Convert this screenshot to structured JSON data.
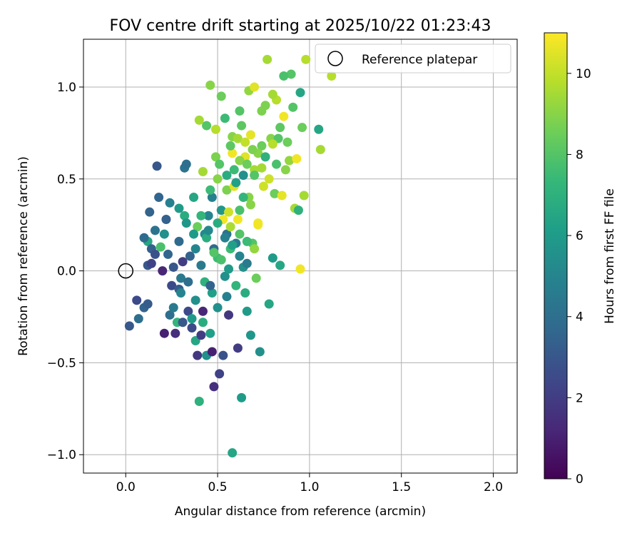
{
  "chart_data": {
    "type": "scatter",
    "title": "FOV centre drift starting at 2025/10/22 01:23:43",
    "xlabel": "Angular distance from reference (arcmin)",
    "ylabel": "Rotation from reference (arcmin)",
    "xlim": [
      -0.23,
      2.13
    ],
    "ylim": [
      -1.1,
      1.26
    ],
    "xticks": [
      0.0,
      0.5,
      1.0,
      1.5,
      2.0
    ],
    "xtick_labels": [
      "0.0",
      "0.5",
      "1.0",
      "1.5",
      "2.0"
    ],
    "yticks": [
      -1.0,
      -0.5,
      0.0,
      0.5,
      1.0
    ],
    "ytick_labels": [
      "−1.0",
      "−0.5",
      "0.0",
      "0.5",
      "1.0"
    ],
    "grid": true,
    "legend": {
      "position": "top-right",
      "label": "Reference platepar"
    },
    "reference_point": {
      "x": 0.0,
      "y": 0.0
    },
    "colorbar": {
      "label": "Hours from first FF file",
      "min": 0,
      "max": 11,
      "ticks": [
        0,
        2,
        4,
        6,
        8,
        10
      ],
      "tick_labels": [
        "0",
        "2",
        "4",
        "6",
        "8",
        "10"
      ],
      "colormap": [
        "#440154",
        "#482878",
        "#3e4989",
        "#31688e",
        "#26828e",
        "#1f9e89",
        "#35b779",
        "#6ece58",
        "#b5de2b",
        "#fde725"
      ]
    },
    "series_fields": [
      "x",
      "y",
      "hours"
    ],
    "points": [
      [
        0.02,
        -0.3,
        3.0
      ],
      [
        0.06,
        -0.16,
        2.5
      ],
      [
        0.07,
        -0.26,
        4.0
      ],
      [
        0.1,
        -0.2,
        3.5
      ],
      [
        0.12,
        -0.18,
        3.2
      ],
      [
        0.12,
        0.03,
        3.0
      ],
      [
        0.14,
        0.04,
        2.2
      ],
      [
        0.12,
        0.16,
        6.5
      ],
      [
        0.1,
        0.18,
        3.8
      ],
      [
        0.14,
        0.12,
        3.4
      ],
      [
        0.16,
        0.09,
        2.8
      ],
      [
        0.13,
        0.32,
        3.5
      ],
      [
        0.16,
        0.22,
        4.2
      ],
      [
        0.18,
        0.4,
        3.6
      ],
      [
        0.17,
        0.57,
        3.0
      ],
      [
        0.19,
        0.13,
        7.8
      ],
      [
        0.2,
        0.0,
        1.2
      ],
      [
        0.21,
        -0.34,
        1.0
      ],
      [
        0.21,
        0.2,
        5.5
      ],
      [
        0.22,
        0.28,
        3.4
      ],
      [
        0.23,
        0.09,
        3.6
      ],
      [
        0.24,
        0.37,
        4.8
      ],
      [
        0.24,
        -0.24,
        4.0
      ],
      [
        0.25,
        -0.08,
        2.5
      ],
      [
        0.26,
        0.02,
        3.0
      ],
      [
        0.27,
        -0.34,
        1.5
      ],
      [
        0.28,
        -0.28,
        7.2
      ],
      [
        0.29,
        -0.1,
        3.2
      ],
      [
        0.29,
        0.16,
        3.8
      ],
      [
        0.3,
        -0.04,
        4.5
      ],
      [
        0.31,
        0.05,
        2.0
      ],
      [
        0.32,
        0.3,
        6.8
      ],
      [
        0.32,
        0.56,
        4.2
      ],
      [
        0.33,
        0.58,
        4.0
      ],
      [
        0.34,
        -0.22,
        2.5
      ],
      [
        0.35,
        0.08,
        3.5
      ],
      [
        0.36,
        -0.26,
        6.0
      ],
      [
        0.37,
        0.4,
        6.5
      ],
      [
        0.38,
        -0.38,
        6.5
      ],
      [
        0.38,
        0.12,
        5.0
      ],
      [
        0.39,
        -0.46,
        1.8
      ],
      [
        0.4,
        -0.71,
        7.0
      ],
      [
        0.41,
        0.03,
        4.5
      ],
      [
        0.42,
        -0.28,
        6.8
      ],
      [
        0.43,
        0.2,
        5.2
      ],
      [
        0.44,
        -0.46,
        5.5
      ],
      [
        0.45,
        0.3,
        5.0
      ],
      [
        0.46,
        -0.34,
        6.2
      ],
      [
        0.47,
        0.4,
        4.8
      ],
      [
        0.48,
        -0.63,
        1.5
      ],
      [
        0.48,
        0.12,
        3.8
      ],
      [
        0.49,
        0.62,
        8.8
      ],
      [
        0.5,
        0.07,
        7.5
      ],
      [
        0.51,
        -0.56,
        2.2
      ],
      [
        0.52,
        0.33,
        5.8
      ],
      [
        0.53,
        -0.46,
        2.8
      ],
      [
        0.54,
        -0.03,
        5.5
      ],
      [
        0.55,
        0.2,
        4.2
      ],
      [
        0.56,
        -0.24,
        1.8
      ],
      [
        0.57,
        0.12,
        7.5
      ],
      [
        0.58,
        -0.99,
        6.5
      ],
      [
        0.59,
        0.55,
        7.5
      ],
      [
        0.6,
        0.15,
        4.5
      ],
      [
        0.61,
        -0.42,
        2.0
      ],
      [
        0.62,
        0.33,
        7.8
      ],
      [
        0.63,
        -0.69,
        6.0
      ],
      [
        0.64,
        0.02,
        5.5
      ],
      [
        0.65,
        0.62,
        10.5
      ],
      [
        0.66,
        -0.22,
        6.0
      ],
      [
        0.67,
        0.4,
        9.0
      ],
      [
        0.68,
        -0.35,
        5.8
      ],
      [
        0.69,
        0.15,
        8.0
      ],
      [
        0.7,
        0.55,
        9.5
      ],
      [
        0.71,
        -0.04,
        8.5
      ],
      [
        0.72,
        0.25,
        10.8
      ],
      [
        0.73,
        -0.44,
        5.5
      ],
      [
        0.74,
        0.68,
        8.5
      ],
      [
        0.75,
        0.46,
        10.2
      ],
      [
        0.76,
        0.9,
        8.8
      ],
      [
        0.77,
        1.15,
        9.5
      ],
      [
        0.78,
        -0.18,
        6.5
      ],
      [
        0.79,
        0.72,
        9.0
      ],
      [
        0.8,
        0.07,
        6.0
      ],
      [
        0.81,
        0.42,
        8.5
      ],
      [
        0.82,
        0.93,
        9.8
      ],
      [
        0.83,
        0.72,
        8.0
      ],
      [
        0.84,
        0.03,
        6.5
      ],
      [
        0.85,
        0.41,
        10.6
      ],
      [
        0.86,
        0.84,
        10.8
      ],
      [
        0.87,
        0.55,
        9.0
      ],
      [
        0.88,
        0.7,
        8.5
      ],
      [
        0.89,
        0.6,
        9.2
      ],
      [
        0.9,
        1.07,
        8.0
      ],
      [
        0.92,
        0.34,
        9.5
      ],
      [
        0.93,
        0.61,
        10.8
      ],
      [
        0.94,
        0.33,
        7.0
      ],
      [
        0.95,
        0.01,
        10.8
      ],
      [
        0.96,
        0.78,
        8.5
      ],
      [
        0.97,
        0.41,
        9.5
      ],
      [
        0.98,
        1.15,
        9.8
      ],
      [
        1.05,
        0.77,
        6.5
      ],
      [
        1.06,
        0.66,
        9.5
      ],
      [
        1.12,
        1.06,
        9.8
      ],
      [
        0.46,
        1.01,
        9.0
      ],
      [
        0.52,
        0.95,
        8.5
      ],
      [
        0.62,
        0.87,
        8.0
      ],
      [
        0.67,
        0.98,
        9.2
      ],
      [
        0.7,
        1.0,
        10.5
      ],
      [
        0.74,
        0.87,
        8.8
      ],
      [
        0.8,
        0.96,
        9.5
      ],
      [
        0.86,
        1.06,
        7.8
      ],
      [
        0.91,
        0.89,
        8.0
      ],
      [
        0.95,
        0.97,
        6.5
      ],
      [
        0.4,
        0.82,
        9.5
      ],
      [
        0.44,
        0.79,
        8.0
      ],
      [
        0.49,
        0.77,
        9.8
      ],
      [
        0.54,
        0.83,
        7.5
      ],
      [
        0.58,
        0.73,
        9.0
      ],
      [
        0.63,
        0.79,
        8.2
      ],
      [
        0.68,
        0.74,
        10.6
      ],
      [
        0.72,
        0.64,
        9.0
      ],
      [
        0.76,
        0.62,
        7.0
      ],
      [
        0.8,
        0.69,
        9.8
      ],
      [
        0.84,
        0.78,
        8.2
      ],
      [
        0.42,
        0.54,
        9.5
      ],
      [
        0.46,
        0.44,
        7.5
      ],
      [
        0.5,
        0.5,
        9.0
      ],
      [
        0.55,
        0.44,
        8.8
      ],
      [
        0.59,
        0.46,
        10.5
      ],
      [
        0.64,
        0.4,
        7.2
      ],
      [
        0.68,
        0.36,
        9.0
      ],
      [
        0.72,
        0.26,
        10.8
      ],
      [
        0.53,
        0.28,
        10.8
      ],
      [
        0.57,
        0.24,
        9.6
      ],
      [
        0.62,
        0.2,
        8.0
      ],
      [
        0.66,
        0.16,
        7.5
      ],
      [
        0.7,
        0.12,
        9.2
      ],
      [
        0.56,
        0.32,
        10.2
      ],
      [
        0.61,
        0.28,
        10.8
      ],
      [
        0.39,
        0.24,
        8.5
      ],
      [
        0.44,
        0.18,
        6.8
      ],
      [
        0.48,
        0.1,
        8.0
      ],
      [
        0.52,
        0.06,
        7.8
      ],
      [
        0.56,
        0.01,
        6.0
      ],
      [
        0.43,
        -0.06,
        7.0
      ],
      [
        0.47,
        -0.12,
        6.2
      ],
      [
        0.5,
        -0.2,
        5.5
      ],
      [
        0.55,
        -0.14,
        4.8
      ],
      [
        0.6,
        -0.08,
        7.2
      ],
      [
        0.65,
        -0.12,
        6.8
      ],
      [
        0.3,
        -0.12,
        5.0
      ],
      [
        0.34,
        -0.06,
        4.0
      ],
      [
        0.38,
        -0.16,
        5.5
      ],
      [
        0.42,
        -0.22,
        1.2
      ],
      [
        0.46,
        -0.08,
        3.5
      ],
      [
        0.26,
        -0.2,
        4.5
      ],
      [
        0.31,
        -0.28,
        3.0
      ],
      [
        0.36,
        -0.31,
        2.5
      ],
      [
        0.41,
        -0.35,
        2.0
      ],
      [
        0.47,
        -0.44,
        1.0
      ],
      [
        0.29,
        0.34,
        6.0
      ],
      [
        0.33,
        0.26,
        5.8
      ],
      [
        0.37,
        0.2,
        6.0
      ],
      [
        0.41,
        0.3,
        7.2
      ],
      [
        0.45,
        0.22,
        5.2
      ],
      [
        0.5,
        0.26,
        6.8
      ],
      [
        0.54,
        0.18,
        4.8
      ],
      [
        0.58,
        0.14,
        6.2
      ],
      [
        0.62,
        0.08,
        5.0
      ],
      [
        0.66,
        0.04,
        4.5
      ],
      [
        0.58,
        0.64,
        10.8
      ],
      [
        0.62,
        0.6,
        9.0
      ],
      [
        0.66,
        0.58,
        8.5
      ],
      [
        0.7,
        0.52,
        8.0
      ],
      [
        0.74,
        0.56,
        9.5
      ],
      [
        0.78,
        0.5,
        10.2
      ],
      [
        0.82,
        0.58,
        7.8
      ],
      [
        0.51,
        0.58,
        8.0
      ],
      [
        0.55,
        0.52,
        6.8
      ],
      [
        0.6,
        0.48,
        6.2
      ],
      [
        0.64,
        0.52,
        5.5
      ],
      [
        0.57,
        0.68,
        8.2
      ],
      [
        0.61,
        0.72,
        9.5
      ],
      [
        0.65,
        0.7,
        10.0
      ],
      [
        0.69,
        0.66,
        8.8
      ]
    ]
  }
}
